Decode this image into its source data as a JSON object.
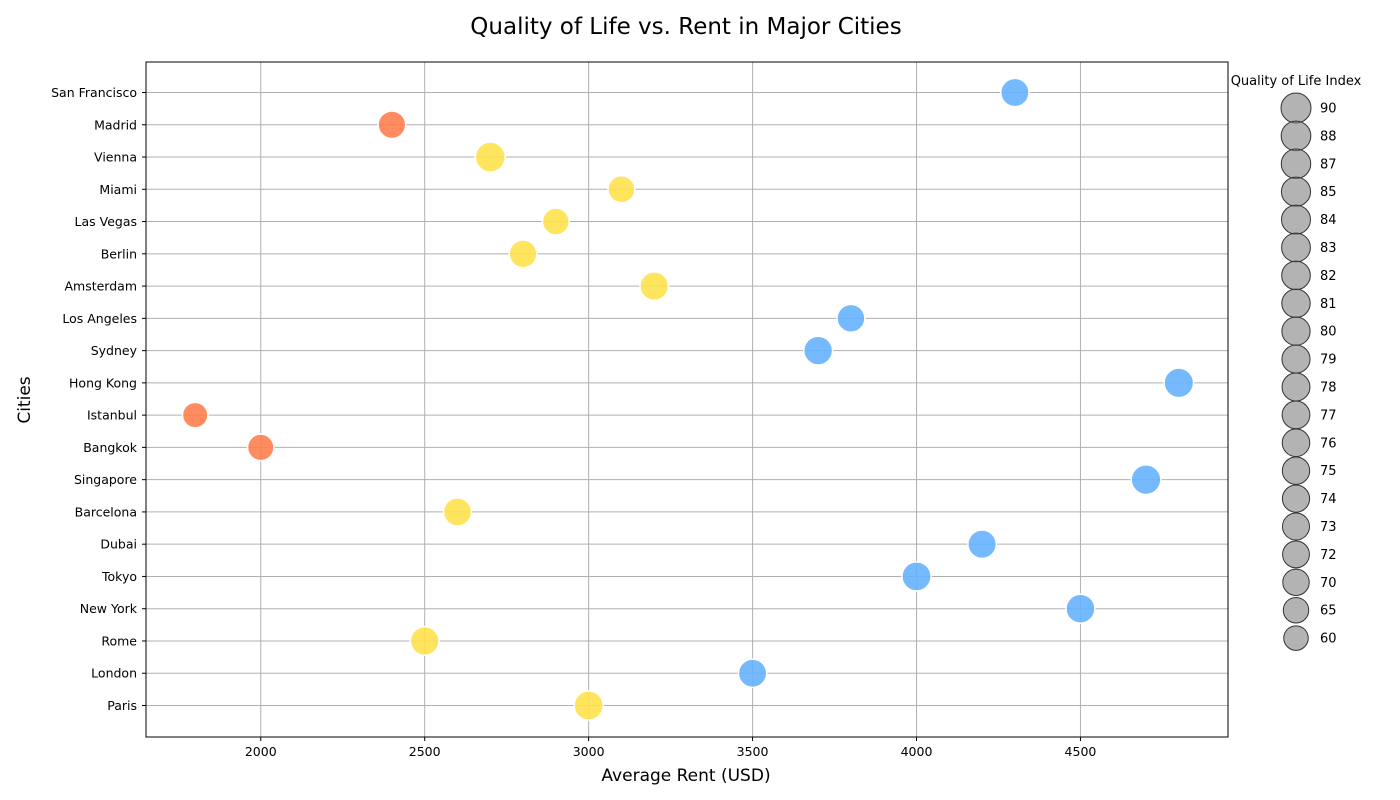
{
  "chart_data": {
    "type": "scatter",
    "title": "Quality of Life vs. Rent in Major Cities",
    "xlabel": "Average Rent (USD)",
    "ylabel": "Cities",
    "xlim": [
      1650,
      4950
    ],
    "xticks": [
      2000,
      2500,
      3000,
      3500,
      4000,
      4500
    ],
    "grid": true,
    "categories": [
      "Paris",
      "London",
      "Rome",
      "New York",
      "Tokyo",
      "Dubai",
      "Barcelona",
      "Singapore",
      "Bangkok",
      "Istanbul",
      "Hong Kong",
      "Sydney",
      "Los Angeles",
      "Amsterdam",
      "Berlin",
      "Las Vegas",
      "Miami",
      "Vienna",
      "Madrid",
      "San Francisco"
    ],
    "points": [
      {
        "city": "Paris",
        "rent": 3000,
        "quality": 85,
        "color": "#FFE14D"
      },
      {
        "city": "London",
        "rent": 3500,
        "quality": 80,
        "color": "#66B2FF"
      },
      {
        "city": "Rome",
        "rent": 2500,
        "quality": 82,
        "color": "#FFE14D"
      },
      {
        "city": "New York",
        "rent": 4500,
        "quality": 84,
        "color": "#66B2FF"
      },
      {
        "city": "Tokyo",
        "rent": 4000,
        "quality": 85,
        "color": "#66B2FF"
      },
      {
        "city": "Dubai",
        "rent": 4200,
        "quality": 81,
        "color": "#66B2FF"
      },
      {
        "city": "Barcelona",
        "rent": 2600,
        "quality": 79,
        "color": "#FFE14D"
      },
      {
        "city": "Singapore",
        "rent": 4700,
        "quality": 88,
        "color": "#66B2FF"
      },
      {
        "city": "Bangkok",
        "rent": 2000,
        "quality": 70,
        "color": "#FF7F50"
      },
      {
        "city": "Istanbul",
        "rent": 1800,
        "quality": 65,
        "color": "#FF7F50"
      },
      {
        "city": "Hong Kong",
        "rent": 4800,
        "quality": 87,
        "color": "#66B2FF"
      },
      {
        "city": "Sydney",
        "rent": 3700,
        "quality": 83,
        "color": "#66B2FF"
      },
      {
        "city": "Los Angeles",
        "rent": 3800,
        "quality": 78,
        "color": "#66B2FF"
      },
      {
        "city": "Amsterdam",
        "rent": 3200,
        "quality": 81,
        "color": "#FFE14D"
      },
      {
        "city": "Berlin",
        "rent": 2800,
        "quality": 77,
        "color": "#FFE14D"
      },
      {
        "city": "Las Vegas",
        "rent": 2900,
        "quality": 72,
        "color": "#FFE14D"
      },
      {
        "city": "Miami",
        "rent": 3100,
        "quality": 73,
        "color": "#FFE14D"
      },
      {
        "city": "Vienna",
        "rent": 2700,
        "quality": 90,
        "color": "#FFE14D"
      },
      {
        "city": "Madrid",
        "rent": 2400,
        "quality": 76,
        "color": "#FF7F50"
      },
      {
        "city": "San Francisco",
        "rent": 4300,
        "quality": 80,
        "color": "#66B2FF"
      }
    ],
    "legend": {
      "title": "Quality of Life Index",
      "placement": "right",
      "entries": [
        "90",
        "88",
        "87",
        "85",
        "84",
        "83",
        "82",
        "81",
        "80",
        "79",
        "78",
        "77",
        "76",
        "75",
        "74",
        "73",
        "72",
        "70",
        "65",
        "60"
      ]
    }
  }
}
